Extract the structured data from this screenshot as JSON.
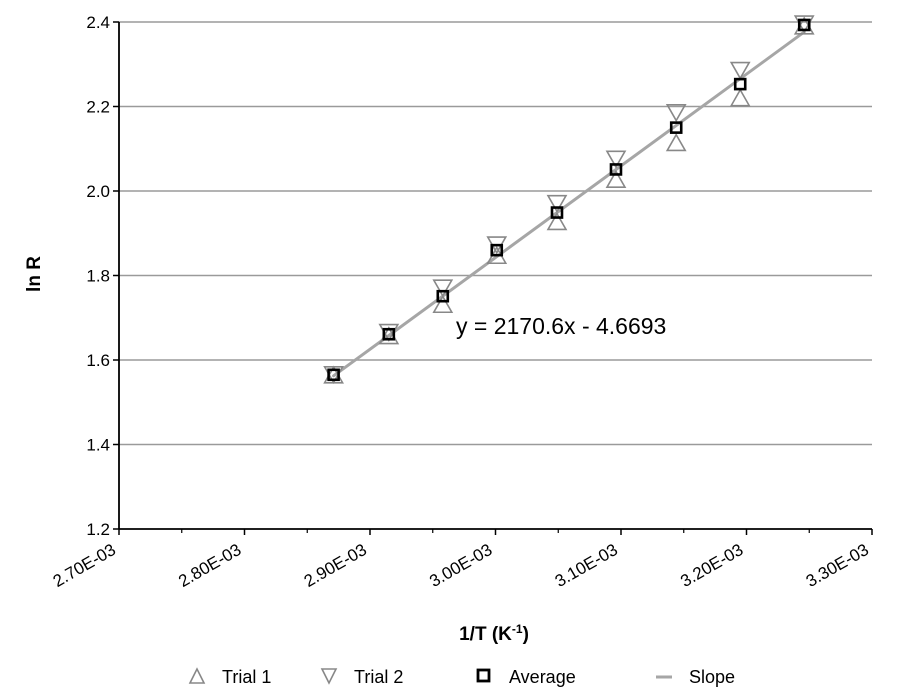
{
  "chart_data": {
    "type": "scatter",
    "xlabel": "1/T (K",
    "xlabel_sup": "-1",
    "xlabel_end": ")",
    "ylabel": "ln R",
    "xlim": [
      0.0027,
      0.0033
    ],
    "ylim": [
      1.2,
      2.4
    ],
    "x_ticks": [
      0.0027,
      0.0028,
      0.0029,
      0.003,
      0.0031,
      0.0032,
      0.0033
    ],
    "x_tick_labels": [
      "2.70E-03",
      "2.80E-03",
      "2.90E-03",
      "3.00E-03",
      "3.10E-03",
      "3.20E-03",
      "3.30E-03"
    ],
    "y_ticks": [
      1.2,
      1.4,
      1.6,
      1.8,
      2.0,
      2.2,
      2.4
    ],
    "y_tick_labels": [
      "1.2",
      "1.4",
      "1.6",
      "1.8",
      "2.0",
      "2.2",
      "2.4"
    ],
    "grid": "horizontal",
    "legend_position": "bottom",
    "series": [
      {
        "name": "Trial 1",
        "marker": "triangle-up",
        "color": "#888888",
        "x": [
          0.002871,
          0.002915,
          0.002958,
          0.003001,
          0.003049,
          0.003096,
          0.003144,
          0.003195,
          0.003246
        ],
        "y": [
          1.562,
          1.655,
          1.729,
          1.845,
          1.925,
          2.025,
          2.112,
          2.218,
          2.388
        ]
      },
      {
        "name": "Trial 2",
        "marker": "triangle-down",
        "color": "#888888",
        "x": [
          0.002871,
          0.002915,
          0.002958,
          0.003001,
          0.003049,
          0.003096,
          0.003144,
          0.003195,
          0.003246
        ],
        "y": [
          1.568,
          1.668,
          1.773,
          1.875,
          1.973,
          2.078,
          2.188,
          2.288,
          2.398
        ]
      },
      {
        "name": "Average",
        "marker": "square",
        "color": "#000000",
        "x": [
          0.002871,
          0.002915,
          0.002958,
          0.003001,
          0.003049,
          0.003096,
          0.003144,
          0.003195,
          0.003246
        ],
        "y": [
          1.565,
          1.661,
          1.751,
          1.86,
          1.949,
          2.051,
          2.15,
          2.253,
          2.393
        ]
      }
    ],
    "trendline": {
      "name": "Slope",
      "color": "#a6a6a6",
      "slope": 2170.6,
      "intercept": -4.6693,
      "x_range": [
        0.002871,
        0.003246
      ],
      "equation_label": "y = 2170.6x - 4.6693"
    }
  }
}
